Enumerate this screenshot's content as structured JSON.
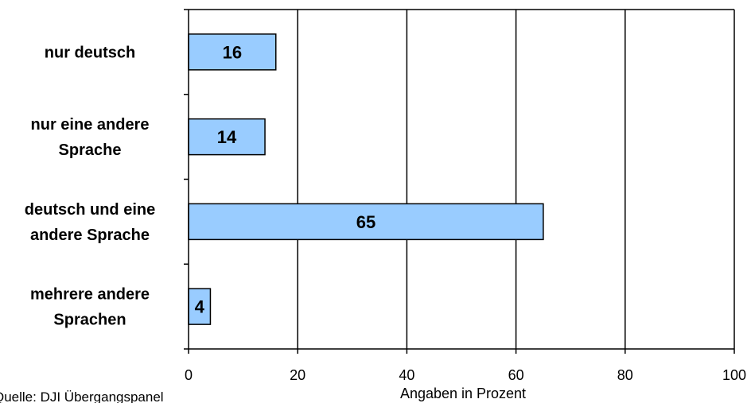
{
  "chart_data": {
    "type": "bar",
    "orientation": "horizontal",
    "categories": [
      [
        "nur deutsch"
      ],
      [
        "nur eine andere",
        "Sprache"
      ],
      [
        "deutsch und eine",
        "andere Sprache"
      ],
      [
        "mehrere andere",
        "Sprachen"
      ]
    ],
    "values": [
      16,
      14,
      65,
      4
    ],
    "data_labels": [
      "16",
      "14",
      "65",
      "4"
    ],
    "xlabel": "Angaben in Prozent",
    "xlim": [
      0,
      100
    ],
    "xticks": [
      0,
      20,
      40,
      60,
      80,
      100
    ],
    "grid": true,
    "bar_color": "#99ccff"
  },
  "source_note": "Quelle: DJI Übergangspanel"
}
